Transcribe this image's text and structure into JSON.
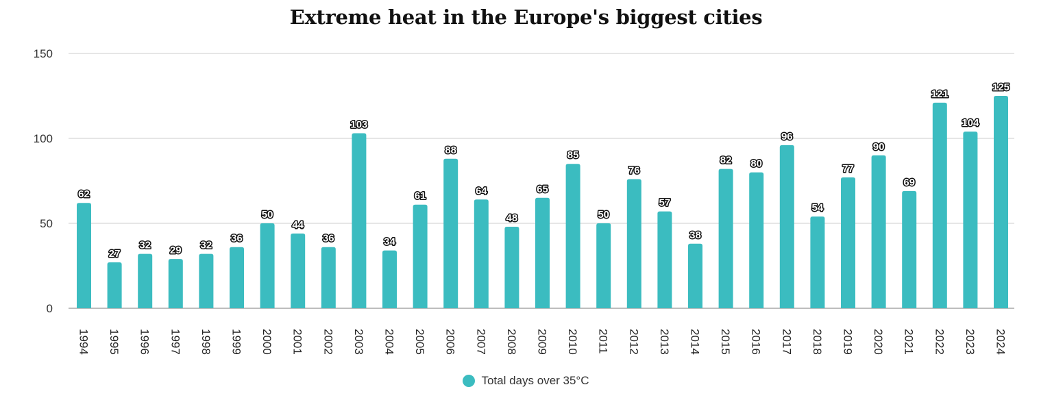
{
  "chart_data": {
    "type": "bar",
    "title": "Extreme heat in the Europe's biggest cities",
    "xlabel": "",
    "ylabel": "",
    "ylim": [
      0,
      150
    ],
    "yticks": [
      0,
      50,
      100,
      150
    ],
    "grid": true,
    "legend_position": "bottom-center",
    "categories": [
      "1994",
      "1995",
      "1996",
      "1997",
      "1998",
      "1999",
      "2000",
      "2001",
      "2002",
      "2003",
      "2004",
      "2005",
      "2006",
      "2007",
      "2008",
      "2009",
      "2010",
      "2011",
      "2012",
      "2013",
      "2014",
      "2015",
      "2016",
      "2017",
      "2018",
      "2019",
      "2020",
      "2021",
      "2022",
      "2023",
      "2024"
    ],
    "series": [
      {
        "name": "Total days over 35°C",
        "color": "#3bbcc0",
        "values": [
          62,
          27,
          32,
          29,
          32,
          36,
          50,
          44,
          36,
          103,
          34,
          61,
          88,
          64,
          48,
          65,
          85,
          50,
          76,
          57,
          38,
          82,
          80,
          96,
          54,
          77,
          90,
          69,
          121,
          104,
          125
        ]
      }
    ]
  }
}
